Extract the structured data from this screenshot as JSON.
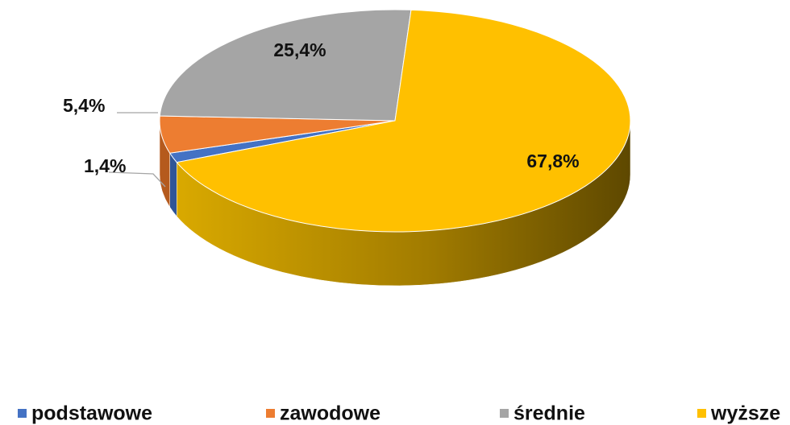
{
  "chart_data": {
    "type": "pie3d",
    "categories": [
      "podstawowe",
      "zawodowe",
      "średnie",
      "wyższe"
    ],
    "values": [
      1.4,
      5.4,
      25.4,
      67.8
    ],
    "value_labels": [
      "1,4%",
      "5,4%",
      "25,4%",
      "67,8%"
    ],
    "colors": [
      "#4472c4",
      "#ed7d31",
      "#a5a5a5",
      "#ffc000"
    ],
    "legend": "bottom"
  }
}
